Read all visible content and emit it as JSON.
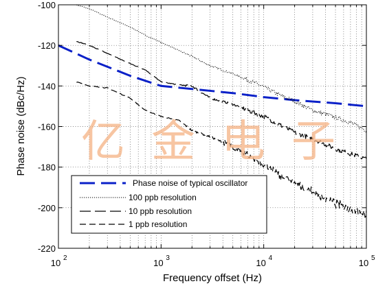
{
  "chart_data": {
    "type": "line",
    "xscale": "log",
    "xlim": [
      100,
      100000
    ],
    "ylim": [
      -220,
      -100
    ],
    "xlabel": "Frequency offset (Hz)",
    "ylabel": "Phase noise (dBc/Hz)",
    "x_ticks": [
      {
        "base": "10",
        "exp": "2",
        "value": 100
      },
      {
        "base": "10",
        "exp": "3",
        "value": 1000
      },
      {
        "base": "10",
        "exp": "4",
        "value": 10000
      },
      {
        "base": "10",
        "exp": "5",
        "value": 100000
      }
    ],
    "y_ticks": [
      "-100",
      "-120",
      "-140",
      "-160",
      "-180",
      "-200",
      "-220"
    ],
    "y_tick_values": [
      -100,
      -120,
      -140,
      -160,
      -180,
      -200,
      -220
    ],
    "grid": true,
    "legend_position": "bottom-left",
    "series": [
      {
        "name": "Phase noise of typical oscillator",
        "style": "thick-dashed",
        "color": "#0a20c8",
        "x": [
          100,
          200,
          500,
          1000,
          2000,
          5000,
          10000,
          20000,
          50000,
          100000
        ],
        "y": [
          -120,
          -127,
          -135,
          -140,
          -141.5,
          -143.5,
          -145.5,
          -147,
          -148.5,
          -150
        ]
      },
      {
        "name": "100 ppb resolution",
        "style": "dotted",
        "color": "#000000",
        "x": [
          150,
          200,
          300,
          500,
          700,
          1000,
          2000,
          3000,
          5000,
          7000,
          10000,
          15000,
          20000,
          30000,
          50000,
          70000,
          100000
        ],
        "y": [
          -100,
          -102,
          -106,
          -111,
          -115,
          -118.5,
          -125.5,
          -130,
          -134,
          -137,
          -140.5,
          -145,
          -147.5,
          -152,
          -155.5,
          -158,
          -162
        ]
      },
      {
        "name": "10 ppb resolution",
        "style": "long-dash",
        "color": "#000000",
        "x": [
          150,
          200,
          300,
          500,
          700,
          1000,
          1500,
          2000,
          3000,
          5000,
          7000,
          10000,
          20000,
          30000,
          50000,
          100000
        ],
        "y": [
          -118,
          -120,
          -124,
          -129,
          -132,
          -138,
          -139.5,
          -140,
          -146,
          -149,
          -152,
          -155,
          -163,
          -166,
          -171,
          -176
        ]
      },
      {
        "name": "1 ppb resolution",
        "style": "medium-dash",
        "color": "#000000",
        "x": [
          150,
          200,
          300,
          500,
          700,
          1000,
          1500,
          2000,
          3000,
          5000,
          7000,
          10000,
          20000,
          50000,
          100000
        ],
        "y": [
          -138,
          -140,
          -141,
          -146,
          -152,
          -155,
          -157,
          -162,
          -165,
          -170,
          -174,
          -179,
          -188,
          -198,
          -203
        ]
      }
    ],
    "watermark": "亿金电子"
  }
}
